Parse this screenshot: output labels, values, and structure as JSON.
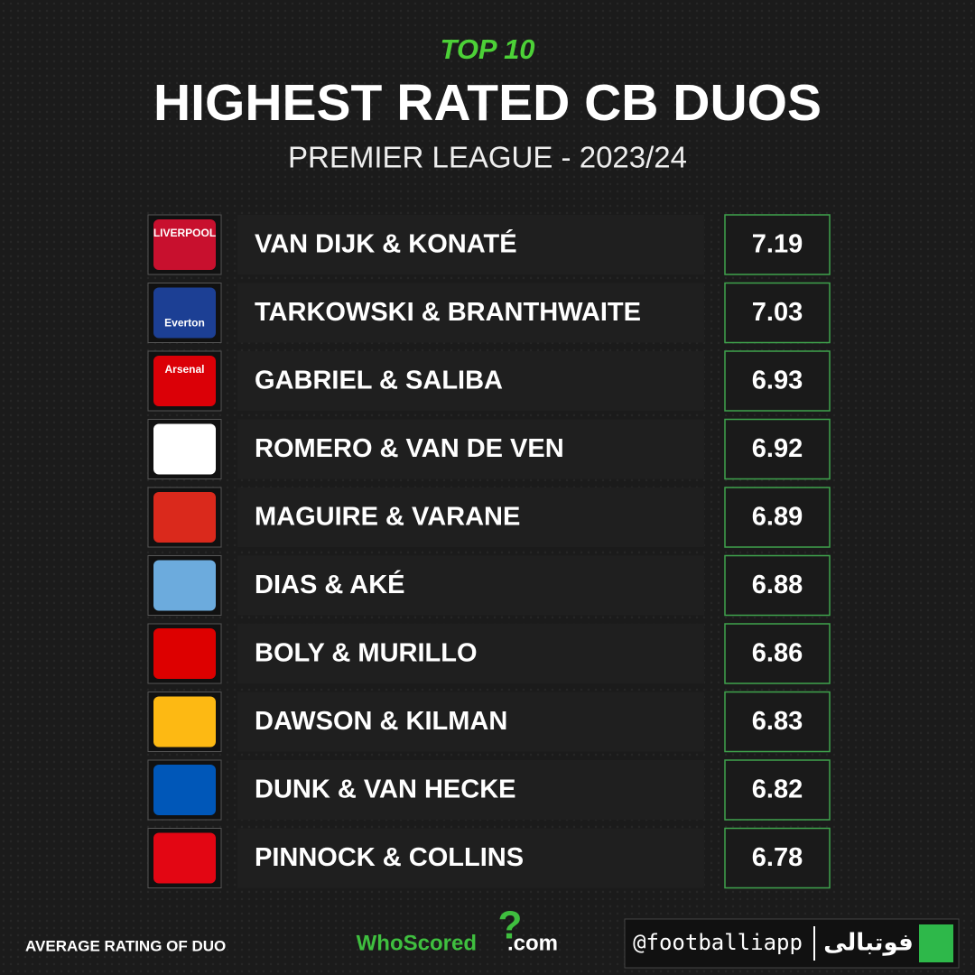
{
  "header": {
    "kicker": "TOP 10",
    "title": "HIGHEST RATED CB DUOS",
    "subtitle": "PREMIER LEAGUE - 2023/24"
  },
  "rows": [
    {
      "crest": "LIVERPOOL",
      "name": "VAN DIJK & KONATÉ",
      "rating": "7.19"
    },
    {
      "crest": "Everton",
      "name": "TARKOWSKI & BRANTHWAITE",
      "rating": "7.03"
    },
    {
      "crest": "Arsenal",
      "name": "GABRIEL & SALIBA",
      "rating": "6.93"
    },
    {
      "name": "ROMERO & VAN DE VEN",
      "rating": "6.92"
    },
    {
      "name": "MAGUIRE & VARANE",
      "rating": "6.89"
    },
    {
      "name": "DIAS & AKÉ",
      "rating": "6.88"
    },
    {
      "name": "BOLY & MURILLO",
      "rating": "6.86"
    },
    {
      "name": "DAWSON & KILMAN",
      "rating": "6.83"
    },
    {
      "name": "DUNK & VAN HECKE",
      "rating": "6.82"
    },
    {
      "name": "PINNOCK & COLLINS",
      "rating": "6.78"
    }
  ],
  "footer": {
    "note": "AVERAGE RATING OF DUO",
    "source_name": "WhoScored",
    "source_mark": "?",
    "source_domain": ".com",
    "handle": "@footballiapp",
    "brand": "فوتبالی"
  }
}
